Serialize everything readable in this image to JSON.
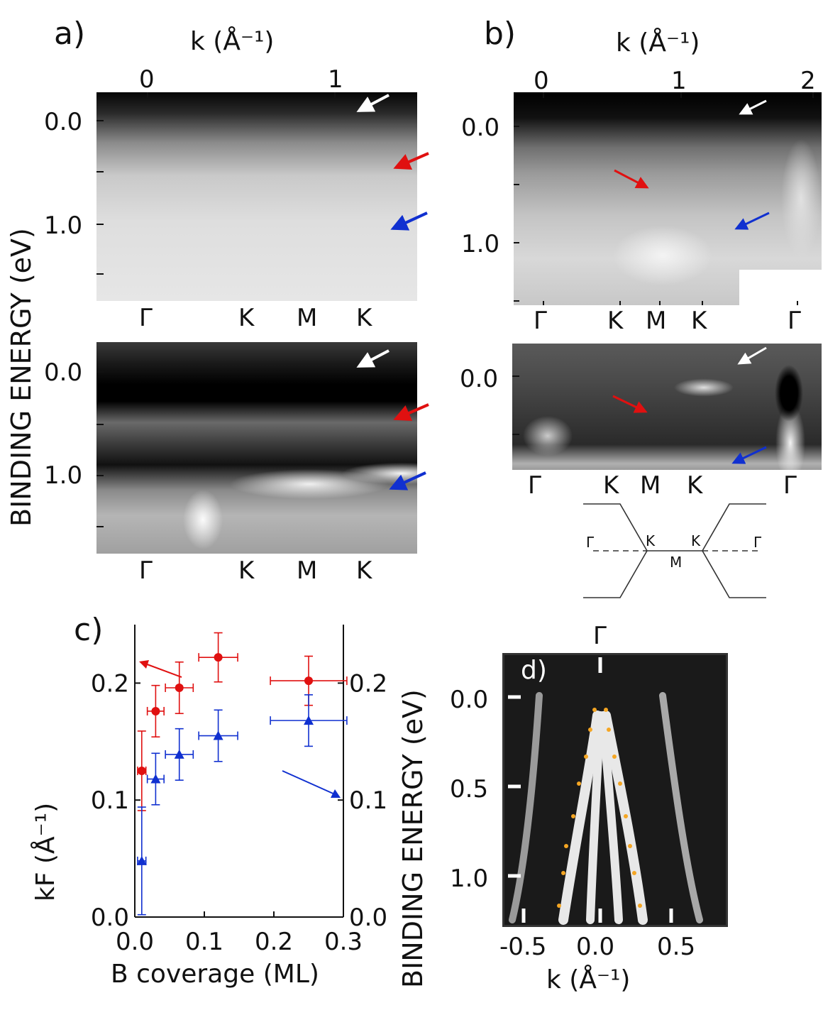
{
  "panels": {
    "a": {
      "label": "a)",
      "k_title": "k  (Å⁻¹)",
      "k_ticks": [
        "0",
        "1"
      ],
      "energy_ticks_top": [
        "0.0",
        "1.0"
      ],
      "energy_ticks_bottom": [
        "0.0",
        "1.0"
      ],
      "sym_top": [
        "Γ",
        "K",
        "M",
        "K"
      ],
      "sym_bottom": [
        "Γ",
        "K",
        "M",
        "K"
      ]
    },
    "b": {
      "label": "b)",
      "k_title": "k  (Å⁻¹)",
      "k_ticks": [
        "0",
        "1",
        "2"
      ],
      "energy_ticks_top": [
        "0.0",
        "1.0"
      ],
      "energy_ticks_bottom": [
        "0.0"
      ],
      "sym_top": [
        "Γ",
        "K",
        "M",
        "K",
        "Γ"
      ],
      "sym_bottom": [
        "Γ",
        "K",
        "M",
        "K",
        "Γ"
      ]
    },
    "bz": {
      "labels": [
        "Γ",
        "K",
        "K",
        "Γ",
        "M"
      ]
    },
    "d": {
      "label": "d)",
      "gamma": "Γ",
      "y_ticks": [
        "0.0",
        "0.5",
        "1.0"
      ],
      "x_ticks": [
        "-0.5",
        "0.0",
        "0.5"
      ],
      "x_title": "k  (Å⁻¹)"
    },
    "c": {
      "label": "c)",
      "xlabel": "B coverage (ML)",
      "ylabel_left": "kF (Å⁻¹)",
      "ylabel_right": "BINDING ENERGY (eV)"
    }
  },
  "shared_ylabel": "BINDING ENERGY (eV)",
  "colors": {
    "red": "#e01010",
    "blue": "#1030d0",
    "white": "#ffffff",
    "orange": "#f5a623"
  },
  "chart_data": {
    "type": "scatter",
    "title": "",
    "xlabel": "B coverage (ML)",
    "ylabel": "kF (Å⁻¹)",
    "ylabel_right": "BINDING ENERGY (eV)",
    "xlim": [
      0.0,
      0.3
    ],
    "ylim": [
      0.0,
      0.25
    ],
    "ylim_right": [
      0.0,
      0.25
    ],
    "x_ticks": [
      "0.0",
      "0.1",
      "0.2",
      "0.3"
    ],
    "y_ticks": [
      "0.0",
      "0.1",
      "0.2"
    ],
    "y_ticks_right": [
      "0.0",
      "0.1",
      "0.2"
    ],
    "series": [
      {
        "color": "#e01010",
        "marker": "circle",
        "axis": "left",
        "points": [
          {
            "x": 0.01,
            "y": 0.125,
            "xerr": 0.006,
            "yerr": 0.034
          },
          {
            "x": 0.03,
            "y": 0.176,
            "xerr": 0.012,
            "yerr": 0.022
          },
          {
            "x": 0.064,
            "y": 0.196,
            "xerr": 0.02,
            "yerr": 0.022
          },
          {
            "x": 0.12,
            "y": 0.222,
            "xerr": 0.028,
            "yerr": 0.021
          },
          {
            "x": 0.25,
            "y": 0.202,
            "xerr": 0.055,
            "yerr": 0.021
          }
        ]
      },
      {
        "color": "#1030d0",
        "marker": "triangle",
        "axis": "right",
        "points": [
          {
            "x": 0.01,
            "y": 0.048,
            "xerr": 0.006,
            "yerr": 0.046
          },
          {
            "x": 0.03,
            "y": 0.118,
            "xerr": 0.012,
            "yerr": 0.022
          },
          {
            "x": 0.064,
            "y": 0.139,
            "xerr": 0.02,
            "yerr": 0.022
          },
          {
            "x": 0.12,
            "y": 0.155,
            "xerr": 0.028,
            "yerr": 0.022
          },
          {
            "x": 0.25,
            "y": 0.168,
            "xerr": 0.055,
            "yerr": 0.022
          }
        ]
      }
    ],
    "annotations": [
      "red arrow pointing to left axis",
      "blue arrow pointing to right axis"
    ]
  }
}
